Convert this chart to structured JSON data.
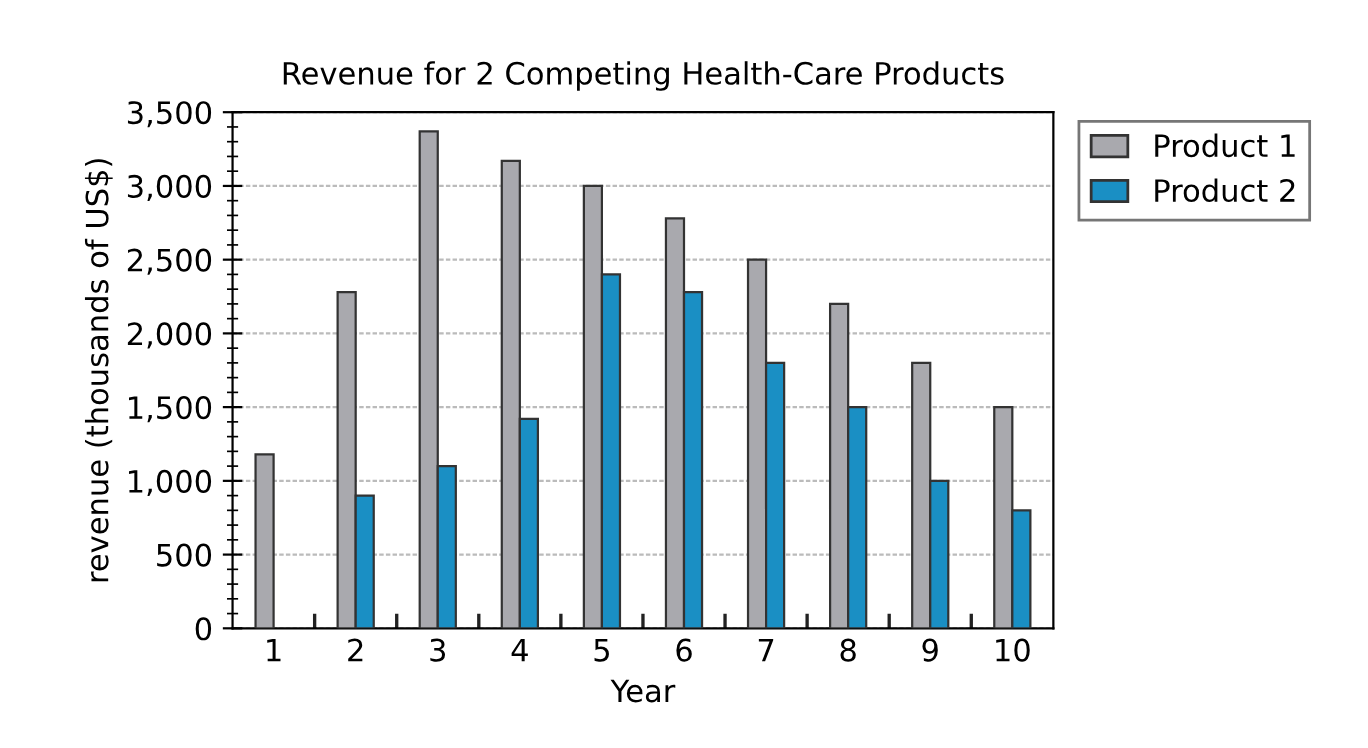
{
  "chart_data": {
    "type": "bar",
    "title": "Revenue for 2 Competing Health-Care Products",
    "xlabel": "Year",
    "ylabel": "revenue (thousands of US$)",
    "categories": [
      "1",
      "2",
      "3",
      "4",
      "5",
      "6",
      "7",
      "8",
      "9",
      "10"
    ],
    "series": [
      {
        "name": "Product 1",
        "color": "#a9a9ae",
        "values": [
          1180,
          2280,
          3370,
          3170,
          3000,
          2780,
          2500,
          2200,
          1800,
          1500
        ]
      },
      {
        "name": "Product 2",
        "color": "#1a8fc4",
        "values": [
          null,
          900,
          1100,
          1420,
          2400,
          2280,
          1800,
          1500,
          1000,
          800
        ]
      }
    ],
    "ylim": [
      0,
      3500
    ],
    "yticks": [
      0,
      500,
      {
        "value": 1000,
        "label": "1,000"
      },
      {
        "value": 1500,
        "label": "1,500"
      },
      {
        "value": 2000,
        "label": "2,000"
      },
      {
        "value": 2500,
        "label": "2,500"
      },
      {
        "value": 3000,
        "label": "3,000"
      },
      {
        "value": 3500,
        "label": "3,500"
      }
    ],
    "grid": "y",
    "legend": "top right"
  }
}
